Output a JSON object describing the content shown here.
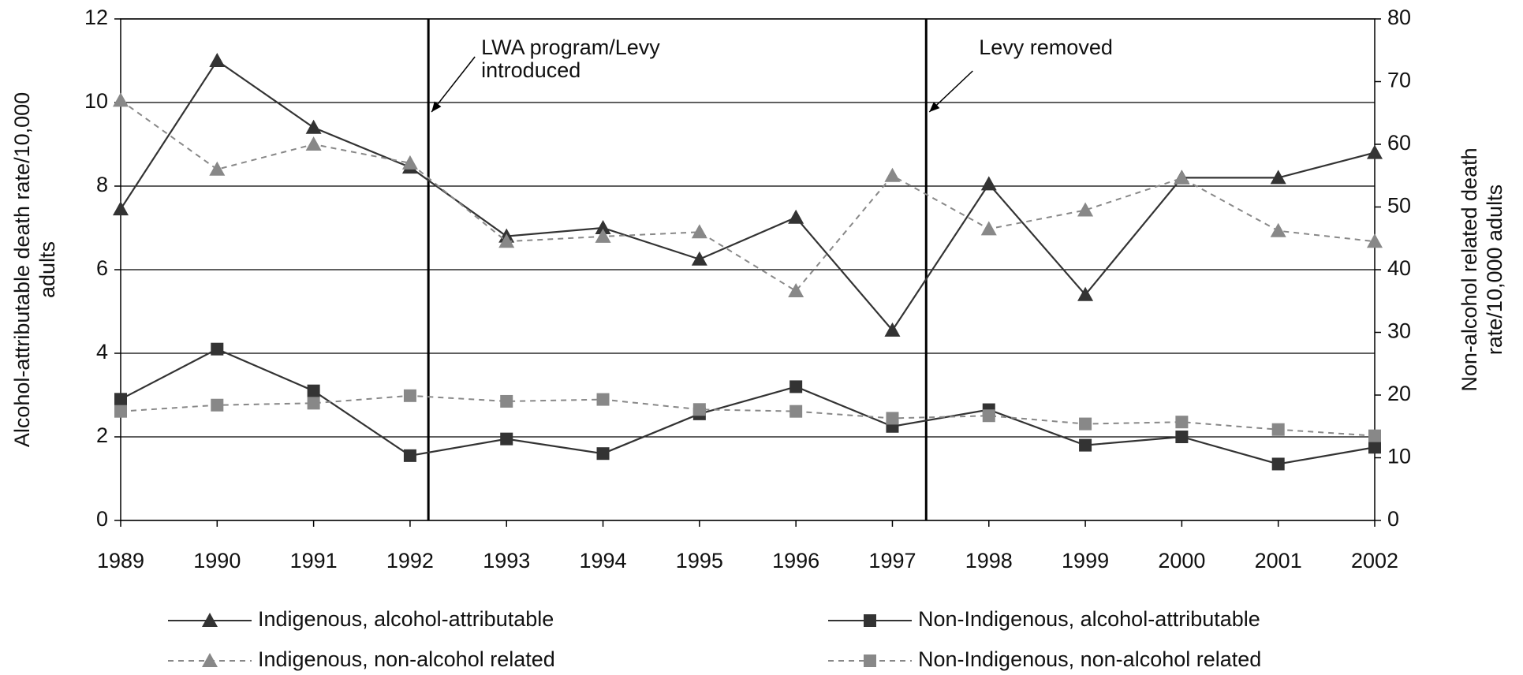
{
  "chart_data": {
    "type": "line",
    "x": [
      1989,
      1990,
      1991,
      1992,
      1993,
      1994,
      1995,
      1996,
      1997,
      1998,
      1999,
      2000,
      2001,
      2002
    ],
    "xlim": [
      1989,
      2002
    ],
    "xticks": [
      1989,
      1990,
      1991,
      1992,
      1993,
      1994,
      1995,
      1996,
      1997,
      1998,
      1999,
      2000,
      2001,
      2002
    ],
    "ylim": [
      0,
      12
    ],
    "yticks": [
      0,
      2,
      4,
      6,
      8,
      10,
      12
    ],
    "y2lim": [
      0,
      80
    ],
    "y2ticks": [
      0,
      10,
      20,
      30,
      40,
      50,
      60,
      70,
      80
    ],
    "y_label": [
      "Alcohol-attributable death rate/10,000",
      "adults"
    ],
    "y2_label": [
      "Non-alcohol related death",
      "rate/10,000 adults"
    ],
    "grid": true,
    "annotations": [
      {
        "x": 1992.19,
        "text": [
          "LWA program/Levy",
          "introduced"
        ]
      },
      {
        "x": 1997.35,
        "text": [
          "Levy removed"
        ]
      }
    ],
    "series": [
      {
        "name": "Indigenous, alcohol-attributable",
        "color": "#333333",
        "marker": "triangle",
        "dash": false,
        "values": [
          7.45,
          11.0,
          9.4,
          8.45,
          6.8,
          7.0,
          6.25,
          7.25,
          4.55,
          8.05,
          5.4,
          8.2,
          8.2,
          8.8
        ]
      },
      {
        "name": "Non-Indigenous, alcohol-attributable",
        "color": "#333333",
        "marker": "square",
        "dash": false,
        "values": [
          2.9,
          4.1,
          3.1,
          1.55,
          1.95,
          1.6,
          2.55,
          3.2,
          2.25,
          2.65,
          1.8,
          2.0,
          1.35,
          1.75
        ]
      },
      {
        "name": "Indigenous, non-alcohol related",
        "color": "#888888",
        "marker": "triangle",
        "dash": true,
        "axis": "y2",
        "values": [
          67,
          56,
          60,
          57,
          44.5,
          45.3,
          46,
          36.6,
          55,
          46.5,
          49.5,
          54.6,
          46.2,
          44.5
        ]
      },
      {
        "name": "Non-Indigenous, non-alcohol related",
        "color": "#888888",
        "marker": "square",
        "dash": true,
        "axis": "y2",
        "values": [
          17.4,
          18.4,
          18.7,
          19.9,
          19,
          19.3,
          17.7,
          17.4,
          16.3,
          16.7,
          15.4,
          15.7,
          14.5,
          13.5
        ]
      }
    ]
  }
}
